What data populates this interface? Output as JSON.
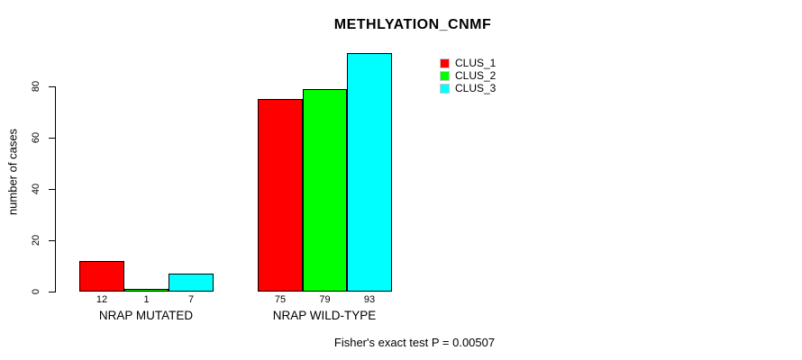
{
  "chart_data": {
    "type": "bar",
    "title": "METHLYATION_CNMF",
    "ylabel": "number of cases",
    "xlabel": "",
    "categories": [
      "NRAP MUTATED",
      "NRAP WILD-TYPE"
    ],
    "series": [
      {
        "name": "CLUS_1",
        "color": "#ff0000",
        "values": [
          12,
          75
        ]
      },
      {
        "name": "CLUS_2",
        "color": "#00ff00",
        "values": [
          1,
          79
        ]
      },
      {
        "name": "CLUS_3",
        "color": "#00ffff",
        "values": [
          7,
          93
        ]
      }
    ],
    "bar_labels": [
      [
        "12",
        "1",
        "7"
      ],
      [
        "75",
        "79",
        "93"
      ]
    ],
    "yticks": [
      "0",
      "20",
      "40",
      "60",
      "80"
    ],
    "ylim": [
      0,
      93
    ],
    "grid": false,
    "legend_position": "top-right",
    "annotation": "Fisher's exact test P = 0.00507"
  }
}
